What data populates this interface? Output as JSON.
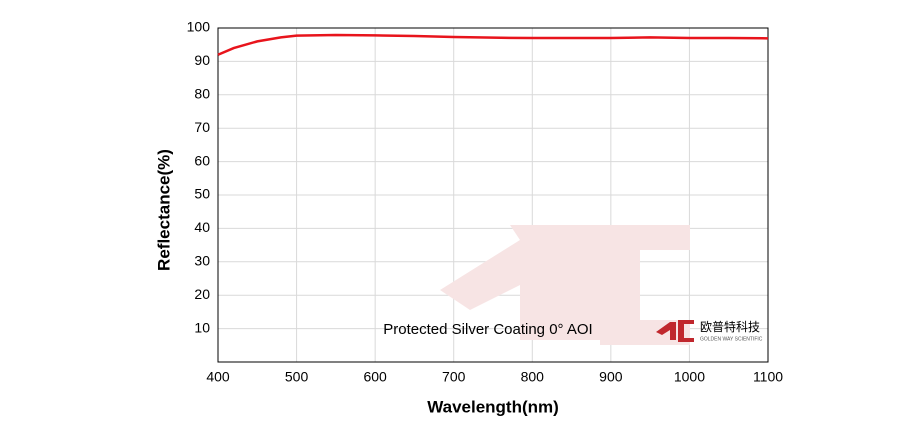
{
  "chart_data": {
    "type": "line",
    "x_label": "Wavelength(nm)",
    "y_label": "Reflectance(%)",
    "annotation": "Protected Silver Coating  0°  AOI",
    "logo_text": "欧普特科技",
    "logo_subtext": "GOLDEN WAY SCIENTIFIC",
    "x": [
      400,
      420,
      450,
      480,
      500,
      550,
      600,
      650,
      700,
      750,
      800,
      850,
      900,
      950,
      1000,
      1050,
      1100
    ],
    "series": [
      {
        "color": "#e8141c",
        "values": [
          92,
          94,
          96,
          97.2,
          97.7,
          97.9,
          97.8,
          97.6,
          97.3,
          97.1,
          97,
          97,
          97,
          97.2,
          97,
          97,
          96.9
        ]
      }
    ],
    "xlim": [
      400,
      1100
    ],
    "xticks": [
      400,
      500,
      600,
      700,
      800,
      900,
      1000,
      1100
    ],
    "ylim": [
      0,
      100
    ],
    "yticks": [
      10,
      20,
      30,
      40,
      50,
      60,
      70,
      80,
      90,
      100
    ],
    "grid": true
  }
}
